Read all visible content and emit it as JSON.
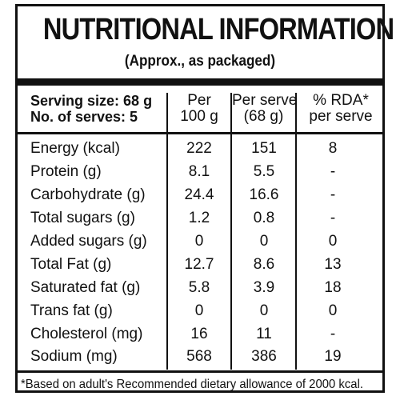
{
  "title": "NUTRITIONAL INFORMATION",
  "subtitle": "(Approx., as packaged)",
  "header": {
    "serving_size": "Serving size: 68 g",
    "num_serves": "No. of serves: 5",
    "col1_line1": "Per",
    "col1_line2": "100 g",
    "col2_line1": "Per serve",
    "col2_line2": "(68 g)",
    "col3_line1": "% RDA*",
    "col3_line2": "per serve"
  },
  "rows": [
    {
      "name": "Energy (kcal)",
      "per100": "222",
      "perServe": "151",
      "rda": "8"
    },
    {
      "name": "Protein (g)",
      "per100": "8.1",
      "perServe": "5.5",
      "rda": "-"
    },
    {
      "name": "Carbohydrate (g)",
      "per100": "24.4",
      "perServe": "16.6",
      "rda": "-"
    },
    {
      "name": "Total sugars (g)",
      "per100": "1.2",
      "perServe": "0.8",
      "rda": "-"
    },
    {
      "name": "Added sugars (g)",
      "per100": "0",
      "perServe": "0",
      "rda": "0"
    },
    {
      "name": "Total Fat (g)",
      "per100": "12.7",
      "perServe": "8.6",
      "rda": "13"
    },
    {
      "name": "Saturated fat (g)",
      "per100": "5.8",
      "perServe": "3.9",
      "rda": "18"
    },
    {
      "name": "Trans fat (g)",
      "per100": "0",
      "perServe": "0",
      "rda": "0"
    },
    {
      "name": "Cholesterol (mg)",
      "per100": "16",
      "perServe": "11",
      "rda": "-"
    },
    {
      "name": "Sodium (mg)",
      "per100": "568",
      "perServe": "386",
      "rda": "19"
    }
  ],
  "footnote": "*Based on adult's Recommended dietary allowance of 2000 kcal."
}
